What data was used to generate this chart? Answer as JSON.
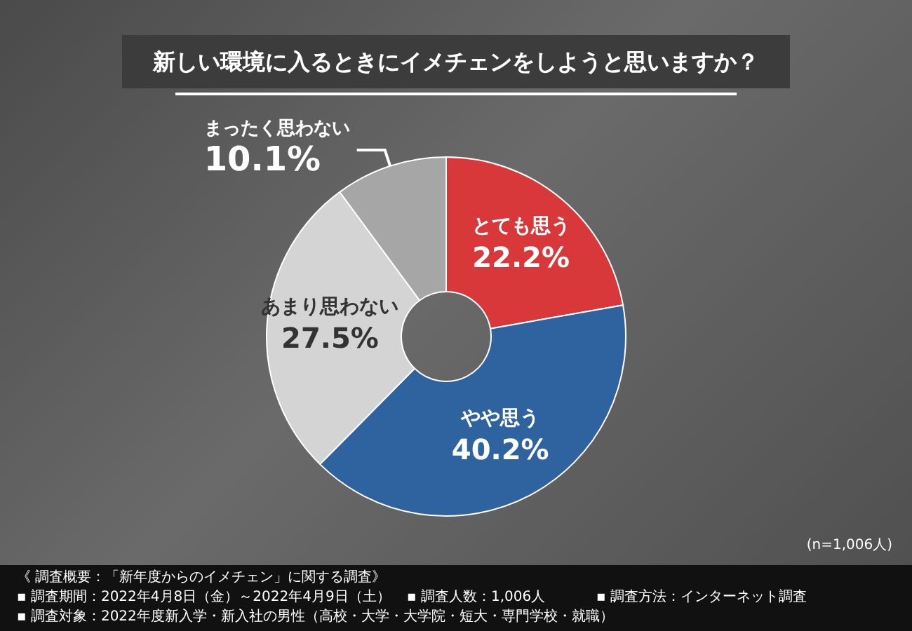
{
  "chart_data": {
    "type": "donut",
    "title": "新しい環境に入るときにイメチェンをしようと思いますか？",
    "categories": [
      "とても思う",
      "やや思う",
      "あまり思わない",
      "まったく思わない"
    ],
    "values": [
      22.2,
      40.2,
      27.5,
      10.1
    ],
    "colors": [
      "#d9383a",
      "#2e63a0",
      "#d4d4d4",
      "#a6a6a6"
    ],
    "value_labels": [
      "22.2%",
      "40.2%",
      "27.5%",
      "10.1%"
    ],
    "annotations": [
      "(n=1,006人)",
      "《 調査概要：「新年度からのイメチェン」に関する調査》",
      "▪ 調査期間：2022年4月8日（金）～2022年4月9日（土）",
      "▪ 調査人数：1,006人",
      "▪ 調査方法：インターネット調査",
      "▪ 調査対象：2022年度新入学・新入社の男性（高校・大学・大学院・短大・専門学校・就職）"
    ]
  }
}
